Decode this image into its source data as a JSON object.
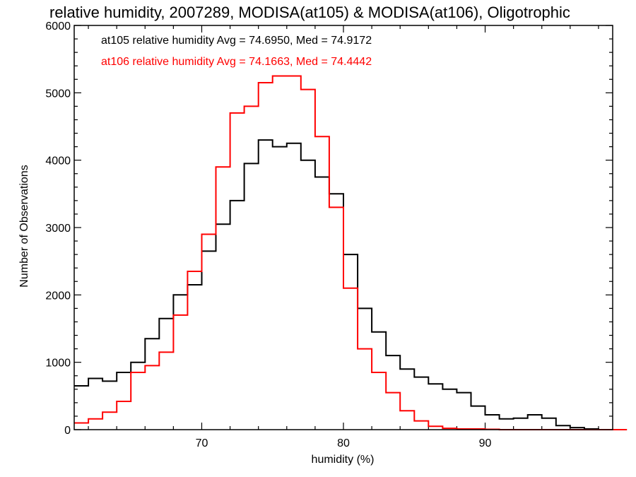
{
  "chart_data": {
    "type": "line",
    "title": "relative humidity, 2007289, MODISA(at105) & MODISA(at106), Oligotrophic",
    "xlabel": "humidity (%)",
    "ylabel": "Number of Observations",
    "xlim": [
      61,
      99
    ],
    "ylim": [
      0,
      6000
    ],
    "x_ticks": [
      "70",
      "80",
      "90"
    ],
    "y_ticks": [
      "0",
      "1000",
      "2000",
      "3000",
      "4000",
      "5000",
      "6000"
    ],
    "step": true,
    "grid": false,
    "legend_position": "top-left",
    "colors": {
      "at105": "#000000",
      "at106": "#ff0000"
    },
    "legend": [
      "at105 relative humidity Avg = 74.6950, Med = 74.9172",
      "at106 relative humidity Avg = 74.1663, Med = 74.4442"
    ],
    "x": [
      61,
      62,
      63,
      64,
      65,
      66,
      67,
      68,
      69,
      70,
      71,
      72,
      73,
      74,
      75,
      76,
      77,
      78,
      79,
      80,
      81,
      82,
      83,
      84,
      85,
      86,
      87,
      88,
      89,
      90,
      91,
      92,
      93,
      94,
      95,
      96,
      97,
      98,
      99
    ],
    "series": [
      {
        "name": "at105",
        "color": "#000000",
        "values": [
          650,
          760,
          720,
          850,
          1000,
          1350,
          1650,
          2000,
          2150,
          2650,
          3050,
          3400,
          3950,
          4300,
          4200,
          4250,
          4000,
          3750,
          3500,
          2600,
          1800,
          1450,
          1100,
          900,
          780,
          680,
          600,
          550,
          350,
          220,
          160,
          170,
          220,
          170,
          60,
          30,
          10,
          0,
          0
        ]
      },
      {
        "name": "at106",
        "color": "#ff0000",
        "values": [
          100,
          160,
          260,
          420,
          850,
          950,
          1150,
          1700,
          2350,
          2900,
          3900,
          4700,
          4800,
          5150,
          5250,
          5250,
          5050,
          4350,
          3300,
          2100,
          1200,
          850,
          550,
          280,
          130,
          50,
          20,
          10,
          10,
          5,
          0,
          0,
          0,
          0,
          0,
          0,
          0,
          0,
          0
        ]
      }
    ]
  }
}
